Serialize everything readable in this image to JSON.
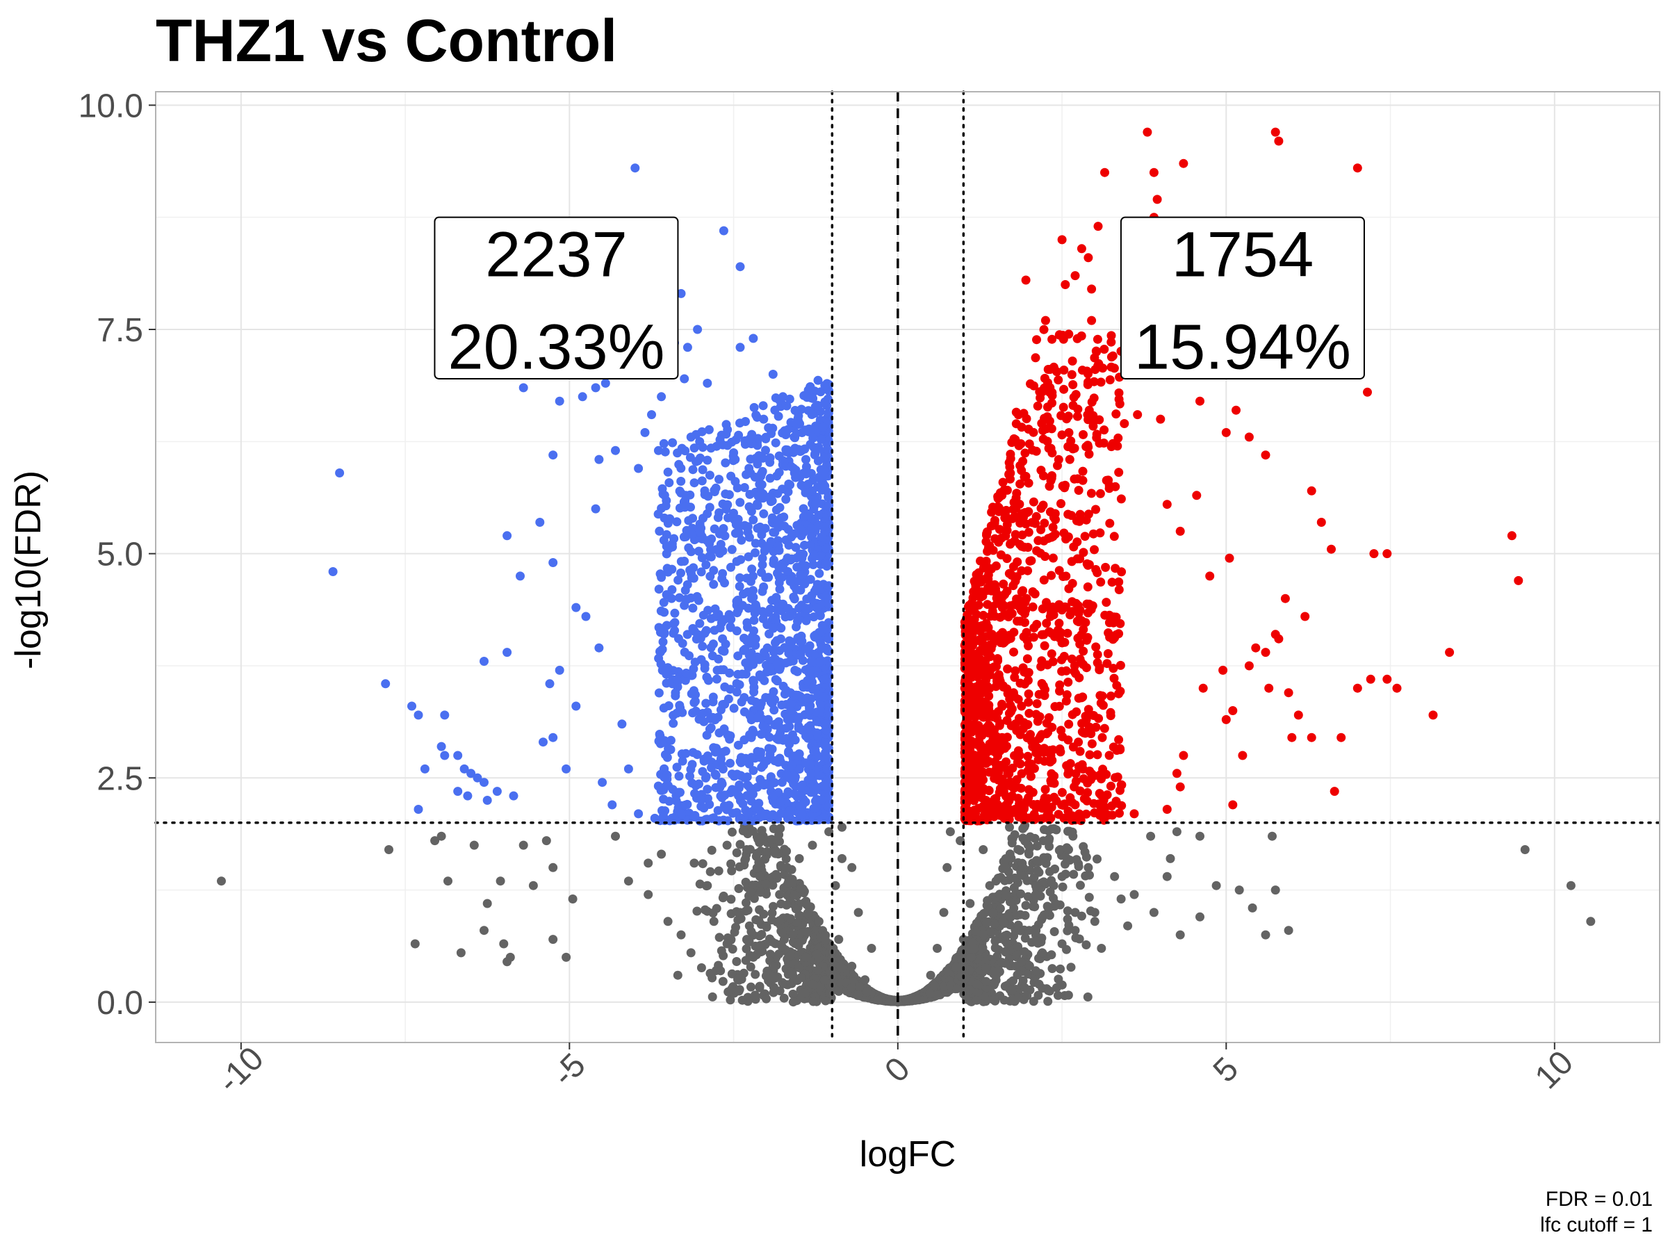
{
  "chart_data": {
    "type": "scatter",
    "title": "THZ1 vs Control",
    "xlabel": "logFC",
    "ylabel": "-log10(FDR)",
    "xlim": [
      -11.3,
      11.6
    ],
    "ylim": [
      -0.45,
      10.15
    ],
    "x_ticks": [
      -10,
      -5,
      0,
      5,
      10
    ],
    "x_tick_labels": [
      "-10",
      "-5",
      "0",
      "5",
      "10"
    ],
    "y_ticks": [
      0,
      2.5,
      5,
      7.5,
      10
    ],
    "y_tick_labels": [
      "0.0",
      "2.5",
      "5.0",
      "7.5",
      "10.0"
    ],
    "grid": true,
    "thresholds": {
      "fdr_line_y": 2,
      "lfc_lines_x": [
        -1,
        1
      ],
      "center_line_x": 0
    },
    "colors": {
      "down": "#4a6ff0",
      "up": "#ee0000",
      "ns": "#636363",
      "grid": "#e5e5e5",
      "panel_border": "#b3b3b3"
    },
    "series": [
      {
        "color": "#4a6ff0",
        "points": [
          [
            -4.0,
            9.3
          ],
          [
            -2.65,
            8.6
          ],
          [
            -2.4,
            8.2
          ],
          [
            -8.5,
            5.9
          ],
          [
            -8.6,
            4.8
          ],
          [
            -7.8,
            3.55
          ],
          [
            -7.4,
            3.3
          ],
          [
            -7.3,
            3.2
          ],
          [
            -6.9,
            3.2
          ],
          [
            -7.2,
            2.6
          ],
          [
            -7.3,
            2.15
          ],
          [
            -6.95,
            2.85
          ],
          [
            -6.9,
            2.75
          ],
          [
            -6.7,
            2.75
          ],
          [
            -6.6,
            2.6
          ],
          [
            -6.5,
            2.55
          ],
          [
            -6.4,
            2.5
          ],
          [
            -6.3,
            2.45
          ],
          [
            -6.7,
            2.35
          ],
          [
            -6.55,
            2.3
          ],
          [
            -6.25,
            2.25
          ],
          [
            -6.1,
            2.35
          ],
          [
            -5.85,
            2.3
          ],
          [
            -6.3,
            3.8
          ],
          [
            -5.95,
            3.9
          ],
          [
            -5.75,
            4.75
          ],
          [
            -5.95,
            5.2
          ],
          [
            -5.45,
            5.35
          ],
          [
            -5.25,
            4.9
          ],
          [
            -5.3,
            3.55
          ],
          [
            -5.4,
            2.9
          ],
          [
            -5.25,
            2.95
          ],
          [
            -5.15,
            3.7
          ],
          [
            -5.05,
            2.6
          ],
          [
            -4.9,
            3.3
          ],
          [
            -5.25,
            6.1
          ],
          [
            -4.85,
            7.05
          ],
          [
            -4.75,
            4.3
          ],
          [
            -4.55,
            3.95
          ],
          [
            -4.6,
            5.5
          ],
          [
            -4.55,
            6.05
          ],
          [
            -4.3,
            6.15
          ],
          [
            -5.15,
            6.7
          ],
          [
            -4.8,
            6.75
          ],
          [
            -4.6,
            6.85
          ],
          [
            -4.45,
            7.4
          ],
          [
            -4.45,
            6.9
          ],
          [
            -5.7,
            6.85
          ],
          [
            -3.3,
            7.9
          ],
          [
            -3.2,
            7.3
          ],
          [
            -3.4,
            7.35
          ],
          [
            -3.25,
            6.95
          ],
          [
            -3.6,
            6.75
          ],
          [
            -3.05,
            7.5
          ],
          [
            -3.5,
            7.15
          ],
          [
            -3.75,
            6.55
          ],
          [
            -3.85,
            6.35
          ],
          [
            -3.95,
            5.95
          ],
          [
            -2.4,
            7.3
          ],
          [
            -2.2,
            7.4
          ],
          [
            -1.9,
            7.0
          ],
          [
            -1.75,
            6.75
          ],
          [
            -1.55,
            6.45
          ],
          [
            -2.05,
            6.65
          ],
          [
            -1.4,
            6.05
          ],
          [
            -1.3,
            5.7
          ],
          [
            -1.25,
            5.55
          ],
          [
            -1.2,
            4.6
          ],
          [
            -1.15,
            4.2
          ],
          [
            -1.12,
            3.6
          ],
          [
            -1.1,
            3.1
          ],
          [
            -1.08,
            2.6
          ],
          [
            -1.05,
            2.2
          ],
          [
            -4.2,
            3.1
          ],
          [
            -4.1,
            2.6
          ],
          [
            -4.35,
            2.2
          ],
          [
            -4.5,
            2.45
          ],
          [
            -3.95,
            2.1
          ],
          [
            -3.7,
            2.05
          ],
          [
            -4.9,
            4.4
          ],
          [
            -3.05,
            4.1
          ],
          [
            -2.75,
            3.7
          ],
          [
            -2.9,
            6.9
          ],
          [
            -3.15,
            6.3
          ]
        ]
      },
      {
        "color": "#ee0000",
        "points": [
          [
            3.8,
            9.7
          ],
          [
            5.75,
            9.7
          ],
          [
            5.8,
            9.6
          ],
          [
            7.0,
            9.3
          ],
          [
            4.35,
            9.35
          ],
          [
            3.9,
            9.25
          ],
          [
            3.15,
            9.25
          ],
          [
            3.95,
            8.95
          ],
          [
            3.9,
            8.75
          ],
          [
            2.7,
            8.1
          ],
          [
            2.55,
            8.0
          ],
          [
            1.95,
            8.05
          ],
          [
            2.25,
            7.6
          ],
          [
            2.5,
            8.5
          ],
          [
            2.9,
            8.3
          ],
          [
            3.5,
            8.25
          ],
          [
            2.8,
            8.4
          ],
          [
            2.95,
            7.95
          ],
          [
            3.05,
            8.65
          ],
          [
            2.95,
            7.6
          ],
          [
            3.65,
            6.55
          ],
          [
            3.45,
            6.45
          ],
          [
            4.0,
            6.5
          ],
          [
            4.6,
            6.7
          ],
          [
            5.15,
            6.6
          ],
          [
            5.0,
            6.35
          ],
          [
            5.35,
            6.3
          ],
          [
            5.6,
            6.1
          ],
          [
            7.15,
            6.8
          ],
          [
            6.3,
            5.7
          ],
          [
            6.45,
            5.35
          ],
          [
            6.6,
            5.05
          ],
          [
            4.75,
            4.75
          ],
          [
            5.05,
            4.95
          ],
          [
            4.3,
            5.25
          ],
          [
            4.55,
            5.65
          ],
          [
            4.1,
            5.55
          ],
          [
            9.35,
            5.2
          ],
          [
            9.45,
            4.7
          ],
          [
            7.25,
            5.0
          ],
          [
            7.45,
            5.0
          ],
          [
            5.9,
            4.5
          ],
          [
            6.2,
            4.3
          ],
          [
            5.75,
            4.1
          ],
          [
            5.8,
            4.05
          ],
          [
            5.45,
            3.95
          ],
          [
            5.6,
            3.9
          ],
          [
            5.35,
            3.75
          ],
          [
            4.95,
            3.7
          ],
          [
            5.65,
            3.5
          ],
          [
            5.95,
            3.45
          ],
          [
            6.1,
            3.2
          ],
          [
            6.0,
            2.95
          ],
          [
            6.3,
            2.95
          ],
          [
            8.4,
            3.9
          ],
          [
            7.0,
            3.5
          ],
          [
            6.75,
            2.95
          ],
          [
            6.65,
            2.35
          ],
          [
            7.2,
            3.6
          ],
          [
            7.45,
            3.6
          ],
          [
            7.6,
            3.5
          ],
          [
            8.15,
            3.2
          ],
          [
            5.25,
            2.75
          ],
          [
            5.1,
            2.2
          ],
          [
            5.0,
            3.15
          ],
          [
            5.1,
            3.25
          ],
          [
            4.65,
            3.5
          ],
          [
            4.35,
            2.75
          ],
          [
            4.3,
            2.4
          ],
          [
            4.1,
            2.15
          ],
          [
            4.25,
            2.55
          ],
          [
            3.6,
            2.1
          ],
          [
            2.7,
            2.2
          ]
        ]
      },
      {
        "color": "#636363",
        "points": [
          [
            -10.3,
            1.35
          ],
          [
            -7.35,
            0.65
          ],
          [
            -6.65,
            0.55
          ],
          [
            -5.9,
            0.5
          ],
          [
            -5.95,
            0.45
          ],
          [
            -6.0,
            0.65
          ],
          [
            -6.3,
            0.8
          ],
          [
            -6.25,
            1.1
          ],
          [
            -6.05,
            1.35
          ],
          [
            -6.85,
            1.35
          ],
          [
            -7.75,
            1.7
          ],
          [
            -7.05,
            1.8
          ],
          [
            -6.95,
            1.85
          ],
          [
            -6.45,
            1.75
          ],
          [
            -5.7,
            1.75
          ],
          [
            -5.35,
            1.8
          ],
          [
            -5.55,
            1.3
          ],
          [
            -5.25,
            1.5
          ],
          [
            -4.95,
            1.15
          ],
          [
            -5.25,
            0.7
          ],
          [
            -5.05,
            0.5
          ],
          [
            -4.1,
            1.35
          ],
          [
            -4.3,
            1.85
          ],
          [
            -3.8,
            1.2
          ],
          [
            -3.5,
            0.9
          ],
          [
            -3.3,
            0.75
          ],
          [
            -3.15,
            0.55
          ],
          [
            -2.7,
            0.35
          ],
          [
            -3.35,
            0.3
          ],
          [
            -2.6,
            0.65
          ],
          [
            -2.2,
            0.5
          ],
          [
            -1.9,
            0.4
          ],
          [
            -1.6,
            0.3
          ],
          [
            -1.3,
            0.2
          ],
          [
            -0.9,
            0.12
          ],
          [
            -0.6,
            0.08
          ],
          [
            -0.3,
            0.02
          ],
          [
            0.0,
            0.0
          ],
          [
            0.3,
            0.03
          ],
          [
            0.6,
            0.08
          ],
          [
            0.9,
            0.15
          ],
          [
            1.2,
            0.2
          ],
          [
            1.5,
            0.3
          ],
          [
            1.8,
            0.4
          ],
          [
            2.2,
            0.55
          ],
          [
            2.5,
            0.65
          ],
          [
            2.7,
            0.8
          ],
          [
            3.0,
            0.9
          ],
          [
            3.1,
            0.6
          ],
          [
            3.4,
            1.15
          ],
          [
            3.6,
            1.2
          ],
          [
            3.85,
            1.85
          ],
          [
            4.15,
            1.6
          ],
          [
            4.1,
            1.4
          ],
          [
            4.6,
            0.95
          ],
          [
            4.85,
            1.3
          ],
          [
            5.2,
            1.25
          ],
          [
            5.4,
            1.05
          ],
          [
            5.6,
            0.75
          ],
          [
            5.75,
            1.25
          ],
          [
            5.95,
            0.8
          ],
          [
            5.7,
            1.85
          ],
          [
            4.6,
            1.85
          ],
          [
            4.25,
            1.9
          ],
          [
            3.0,
            1.0
          ],
          [
            10.25,
            1.3
          ],
          [
            10.55,
            0.9
          ],
          [
            9.55,
            1.7
          ],
          [
            -0.95,
            1.3
          ],
          [
            -0.85,
            1.6
          ],
          [
            -1.05,
            1.9
          ],
          [
            -1.5,
            1.6
          ],
          [
            -1.8,
            1.2
          ],
          [
            -2.1,
            1.4
          ],
          [
            -2.4,
            1.0
          ],
          [
            -2.6,
            1.75
          ],
          [
            -2.9,
            1.3
          ],
          [
            -3.1,
            1.55
          ],
          [
            -1.2,
            0.9
          ],
          [
            -0.9,
            0.7
          ],
          [
            -0.7,
            0.4
          ],
          [
            -0.5,
            0.25
          ],
          [
            -0.4,
            0.6
          ],
          [
            -0.6,
            1.0
          ],
          [
            -0.7,
            1.5
          ],
          [
            0.5,
            0.3
          ],
          [
            0.6,
            0.6
          ],
          [
            0.7,
            1.0
          ],
          [
            0.75,
            1.5
          ],
          [
            0.8,
            1.9
          ],
          [
            1.1,
            1.1
          ],
          [
            1.4,
            1.3
          ],
          [
            1.6,
            0.9
          ],
          [
            1.9,
            1.5
          ],
          [
            2.1,
            1.2
          ],
          [
            2.3,
            1.8
          ],
          [
            2.5,
            1.4
          ],
          [
            2.7,
            1.0
          ],
          [
            1.3,
            1.7
          ],
          [
            1.0,
            0.7
          ],
          [
            0.95,
            1.8
          ],
          [
            -1.6,
            0.75
          ],
          [
            -2.0,
            0.85
          ],
          [
            -2.3,
            1.7
          ],
          [
            -1.3,
            1.75
          ],
          [
            -0.85,
            1.95
          ],
          [
            -1.4,
            0.5
          ],
          [
            -2.8,
            0.9
          ],
          [
            -3.6,
            1.65
          ],
          [
            -3.8,
            1.55
          ],
          [
            -2.3,
            0.7
          ],
          [
            2.0,
            0.8
          ],
          [
            2.4,
            1.1
          ],
          [
            2.9,
            1.5
          ],
          [
            2.6,
            1.7
          ],
          [
            3.3,
            1.4
          ],
          [
            3.5,
            0.85
          ],
          [
            3.9,
            1.0
          ],
          [
            4.3,
            0.75
          ],
          [
            2.1,
            0.35
          ],
          [
            1.7,
            1.95
          ]
        ]
      }
    ],
    "annotations": [
      {
        "line1": "2237",
        "line2": "20.33%"
      },
      {
        "line1": "1754",
        "line2": "15.94%"
      }
    ],
    "caption": [
      "FDR =  0.01",
      "lfc cutoff =  1"
    ]
  }
}
